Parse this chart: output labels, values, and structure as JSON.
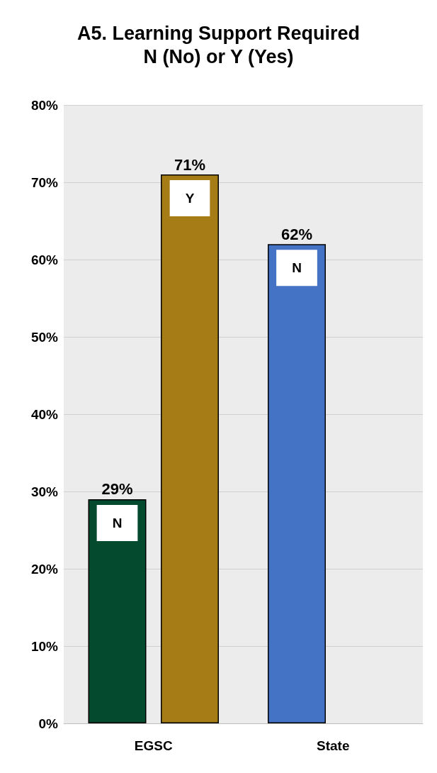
{
  "chart_data": {
    "type": "bar",
    "title": "A5. Learning Support Required",
    "subtitle": "N (No) or Y (Yes)",
    "categories": [
      "EGSC",
      "State"
    ],
    "series": [
      {
        "name": "N",
        "colors": [
          "#034a2f",
          "#4472c4"
        ],
        "values": [
          29,
          62
        ],
        "value_labels": [
          "29%",
          "62%"
        ]
      },
      {
        "name": "Y",
        "color": "#a67c16",
        "values": [
          71,
          null
        ],
        "value_labels": [
          "71%",
          null
        ]
      }
    ],
    "ylim": [
      0,
      80
    ],
    "yticks": [
      {
        "value": 0,
        "label": "0%"
      },
      {
        "value": 10,
        "label": "10%"
      },
      {
        "value": 20,
        "label": "20%"
      },
      {
        "value": 30,
        "label": "30%"
      },
      {
        "value": 40,
        "label": "40%"
      },
      {
        "value": 50,
        "label": "50%"
      },
      {
        "value": 60,
        "label": "60%"
      },
      {
        "value": 70,
        "label": "70%"
      },
      {
        "value": 80,
        "label": "80%"
      }
    ],
    "grid": "y",
    "legend": false
  }
}
